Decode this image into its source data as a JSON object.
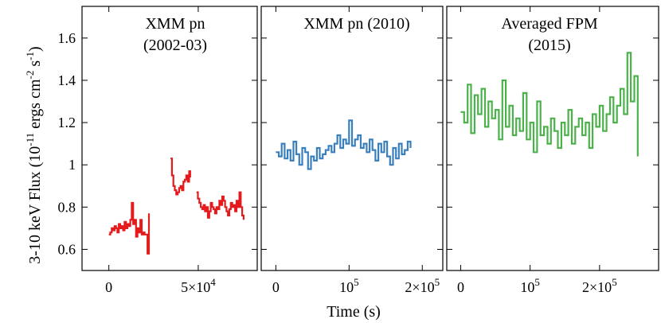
{
  "chart_data": {
    "type": "line",
    "ylabel": {
      "main": "3-10 keV Flux (10",
      "exp1": "-11",
      "mid": " ergs cm",
      "exp2": "-2",
      "mid2": " s",
      "exp3": "-1",
      "end": ")"
    },
    "xlabel": "Time (s)",
    "ylim": [
      0.5,
      1.75
    ],
    "yticks": [
      {
        "value": 0.6,
        "label": "0.6"
      },
      {
        "value": 0.8,
        "label": "0.8"
      },
      {
        "value": 1.0,
        "label": "1"
      },
      {
        "value": 1.2,
        "label": "1.2"
      },
      {
        "value": 1.4,
        "label": "1.4"
      },
      {
        "value": 1.6,
        "label": "1.6"
      }
    ],
    "panels": [
      {
        "title_lines": [
          "XMM pn",
          "(2002-03)"
        ],
        "xlim": [
          -15000,
          83000
        ],
        "xticks": [
          {
            "value": 0,
            "label": "0",
            "exp": ""
          },
          {
            "value": 50000,
            "label": "5×10",
            "exp": "4"
          }
        ],
        "series": [
          {
            "color": "#e41a1c",
            "segments": [
              {
                "x": [
                  0,
                  800,
                  1600,
                  2400,
                  3200,
                  4000,
                  4800,
                  5600,
                  6400,
                  7200,
                  8000,
                  8800,
                  9600,
                  10400,
                  11200,
                  12000,
                  12800,
                  13600,
                  14400,
                  15200,
                  16000,
                  16800,
                  17600,
                  18400,
                  19200,
                  20000,
                  20800,
                  21600,
                  22400
                ],
                "y": [
                  0.67,
                  0.68,
                  0.7,
                  0.69,
                  0.71,
                  0.7,
                  0.68,
                  0.72,
                  0.7,
                  0.71,
                  0.69,
                  0.73,
                  0.7,
                  0.72,
                  0.71,
                  0.74,
                  0.82,
                  0.72,
                  0.74,
                  0.66,
                  0.7,
                  0.68,
                  0.74,
                  0.67,
                  0.68,
                  0.67,
                  0.67,
                  0.58,
                  0.77
                ]
              },
              {
                "x": [
                  34500,
                  35300,
                  36100,
                  36900,
                  37700,
                  38500,
                  39300,
                  40100,
                  40900,
                  41700,
                  42500,
                  43300,
                  44100,
                  44900,
                  45500
                ],
                "y": [
                  1.03,
                  0.95,
                  0.9,
                  0.88,
                  0.86,
                  0.87,
                  0.89,
                  0.9,
                  0.88,
                  0.92,
                  0.93,
                  0.95,
                  0.92,
                  0.97,
                  0.94
                ]
              },
              {
                "x": [
                  49000,
                  49800,
                  50600,
                  51400,
                  52200,
                  53000,
                  53800,
                  54600,
                  55400,
                  56200,
                  57000,
                  57800,
                  58600,
                  59400,
                  60200,
                  61000,
                  61800,
                  62600,
                  63400,
                  64200,
                  65000,
                  65800,
                  66600,
                  67400,
                  68200,
                  69000,
                  69800,
                  70600,
                  71400,
                  72200,
                  73000,
                  73800,
                  74600,
                  75400
                ],
                "y": [
                  0.87,
                  0.84,
                  0.82,
                  0.8,
                  0.79,
                  0.81,
                  0.78,
                  0.8,
                  0.75,
                  0.78,
                  0.82,
                  0.8,
                  0.79,
                  0.77,
                  0.8,
                  0.79,
                  0.83,
                  0.81,
                  0.85,
                  0.83,
                  0.8,
                  0.78,
                  0.76,
                  0.79,
                  0.82,
                  0.8,
                  0.81,
                  0.78,
                  0.83,
                  0.8,
                  0.87,
                  0.8,
                  0.76,
                  0.74
                ]
              }
            ]
          }
        ]
      },
      {
        "title_lines": [
          "XMM pn (2010)"
        ],
        "xlim": [
          -20000,
          228000
        ],
        "xticks": [
          {
            "value": 0,
            "label": "0",
            "exp": ""
          },
          {
            "value": 100000,
            "label": "10",
            "exp": "5"
          },
          {
            "value": 200000,
            "label": "2×10",
            "exp": "5"
          }
        ],
        "series": [
          {
            "color": "#3a7fbd",
            "segments": [
              {
                "x": [
                  0,
                  4000,
                  8000,
                  12000,
                  16000,
                  20000,
                  24000,
                  28000,
                  32000,
                  36000,
                  40000,
                  44000,
                  48000,
                  52000,
                  56000,
                  60000,
                  64000,
                  68000,
                  72000,
                  76000,
                  80000,
                  84000,
                  88000,
                  92000,
                  96000,
                  100000,
                  104000,
                  108000,
                  112000,
                  116000,
                  120000,
                  124000,
                  128000,
                  132000,
                  136000,
                  140000,
                  144000,
                  148000,
                  152000,
                  156000,
                  160000,
                  164000,
                  168000,
                  172000,
                  176000,
                  180000,
                  184000
                ],
                "y": [
                  1.06,
                  1.04,
                  1.1,
                  1.03,
                  1.07,
                  1.02,
                  1.11,
                  1.05,
                  1.0,
                  1.08,
                  1.06,
                  0.98,
                  1.04,
                  1.02,
                  1.08,
                  1.03,
                  1.05,
                  1.07,
                  1.09,
                  1.06,
                  1.1,
                  1.14,
                  1.08,
                  1.12,
                  1.1,
                  1.21,
                  1.09,
                  1.12,
                  1.14,
                  1.08,
                  1.1,
                  1.06,
                  1.12,
                  1.07,
                  1.02,
                  1.1,
                  1.06,
                  1.11,
                  1.04,
                  1.0,
                  1.08,
                  1.03,
                  1.1,
                  1.05,
                  1.07,
                  1.11,
                  1.08
                ]
              }
            ]
          }
        ]
      },
      {
        "title_lines": [
          "Averaged FPM",
          "(2015)"
        ],
        "xlim": [
          -20000,
          285000
        ],
        "xticks": [
          {
            "value": 0,
            "label": "0",
            "exp": ""
          },
          {
            "value": 100000,
            "label": "10",
            "exp": "5"
          },
          {
            "value": 200000,
            "label": "2×10",
            "exp": "5"
          }
        ],
        "series": [
          {
            "color": "#4bb24b",
            "segments": [
              {
                "x": [
                  0,
                  5000,
                  10000,
                  15000,
                  20000,
                  25000,
                  30000,
                  35000,
                  40000,
                  45000,
                  50000,
                  55000,
                  60000,
                  65000,
                  70000,
                  75000,
                  80000,
                  85000,
                  90000,
                  95000,
                  100000,
                  105000,
                  110000,
                  115000,
                  120000,
                  125000,
                  130000,
                  135000,
                  140000,
                  145000,
                  150000,
                  155000,
                  160000,
                  165000,
                  170000,
                  175000,
                  180000,
                  185000,
                  190000,
                  195000,
                  200000,
                  205000,
                  210000,
                  215000,
                  220000,
                  225000,
                  230000,
                  235000,
                  240000,
                  245000,
                  250000,
                  255000
                ],
                "y": [
                  1.25,
                  1.2,
                  1.38,
                  1.15,
                  1.33,
                  1.24,
                  1.36,
                  1.18,
                  1.3,
                  1.22,
                  1.26,
                  1.12,
                  1.4,
                  1.18,
                  1.28,
                  1.14,
                  1.22,
                  1.16,
                  1.34,
                  1.12,
                  1.2,
                  1.06,
                  1.3,
                  1.14,
                  1.18,
                  1.1,
                  1.22,
                  1.16,
                  1.08,
                  1.2,
                  1.14,
                  1.26,
                  1.1,
                  1.18,
                  1.22,
                  1.14,
                  1.2,
                  1.08,
                  1.24,
                  1.18,
                  1.28,
                  1.16,
                  1.24,
                  1.32,
                  1.2,
                  1.28,
                  1.36,
                  1.24,
                  1.53,
                  1.3,
                  1.42,
                  1.04
                ]
              }
            ]
          }
        ]
      }
    ]
  }
}
